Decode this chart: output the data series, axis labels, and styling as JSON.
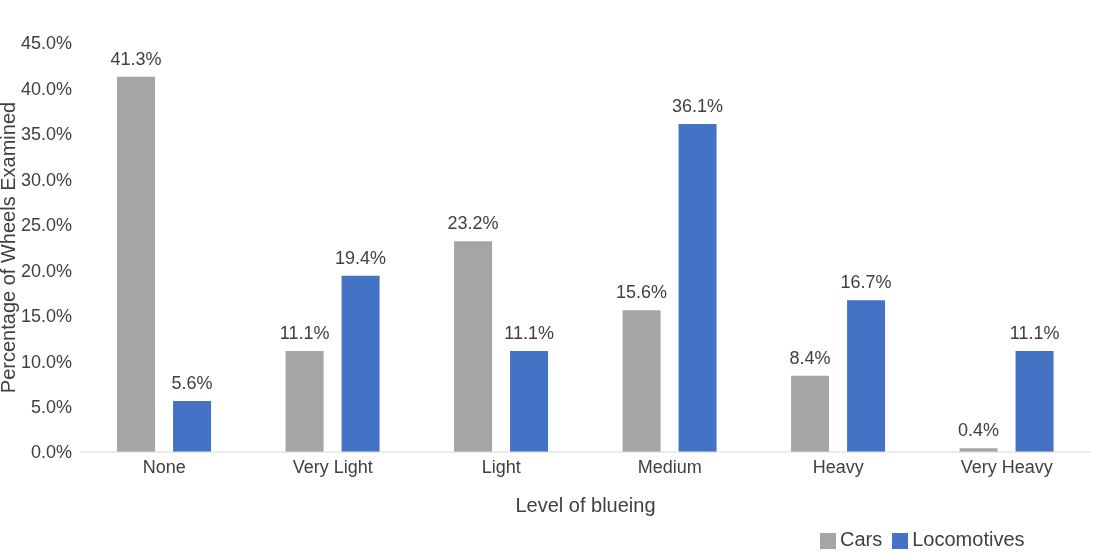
{
  "chart_data": {
    "type": "bar",
    "xlabel": "Level of blueing",
    "ylabel": "Percentage of Wheels Examined",
    "categories": [
      "None",
      "Very Light",
      "Light",
      "Medium",
      "Heavy",
      "Very Heavy"
    ],
    "series": [
      {
        "name": "Cars",
        "color": "#a5a5a5",
        "values": [
          41.3,
          11.1,
          23.2,
          15.6,
          8.4,
          0.4
        ],
        "value_labels": [
          "41.3%",
          "11.1%",
          "23.2%",
          "15.6%",
          "8.4%",
          "0.4%"
        ]
      },
      {
        "name": "Locomotives",
        "color": "#4472c4",
        "values": [
          5.6,
          19.4,
          11.1,
          36.1,
          16.7,
          11.1
        ],
        "value_labels": [
          "5.6%",
          "19.4%",
          "11.1%",
          "36.1%",
          "16.7%",
          "11.1%"
        ]
      }
    ],
    "ylim": [
      0,
      45
    ],
    "yticks": [
      {
        "value": 0,
        "label": "0.0%"
      },
      {
        "value": 5,
        "label": "5.0%"
      },
      {
        "value": 10,
        "label": "10.0%"
      },
      {
        "value": 15,
        "label": "15.0%"
      },
      {
        "value": 20,
        "label": "20.0%"
      },
      {
        "value": 25,
        "label": "25.0%"
      },
      {
        "value": 30,
        "label": "30.0%"
      },
      {
        "value": 35,
        "label": "35.0%"
      },
      {
        "value": 40,
        "label": "40.0%"
      },
      {
        "value": 45,
        "label": "45.0%"
      }
    ],
    "grid": false,
    "legend": "bottom right"
  }
}
